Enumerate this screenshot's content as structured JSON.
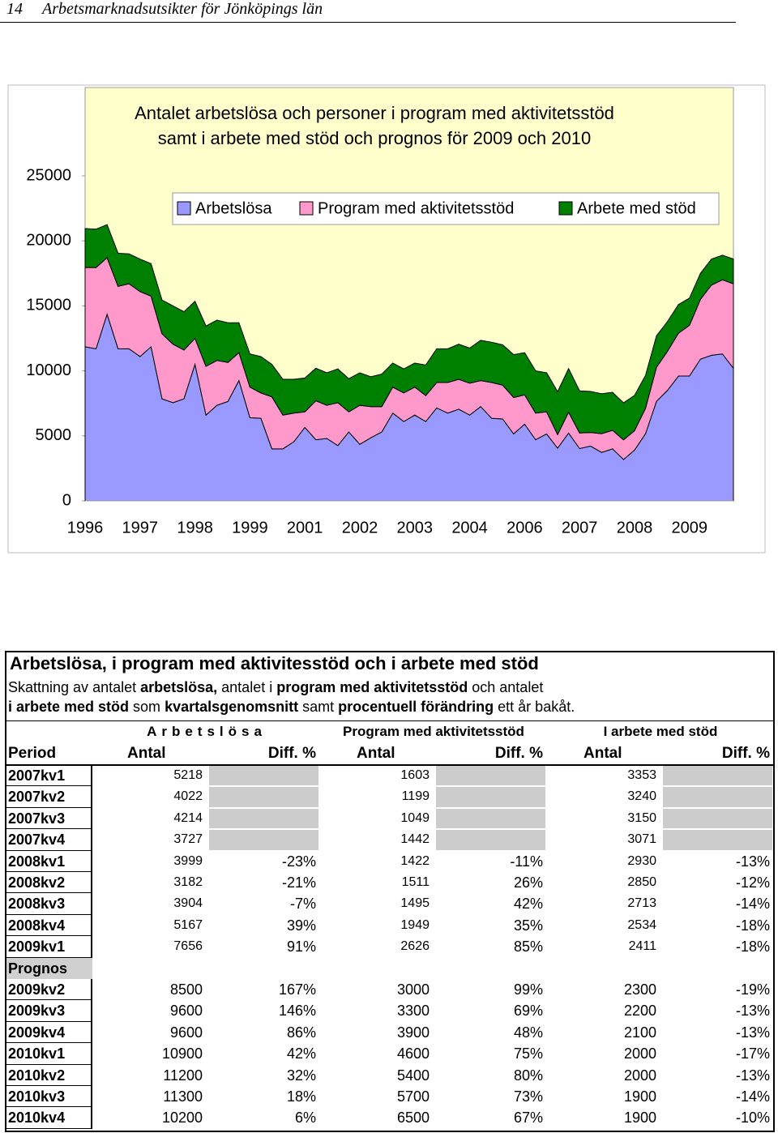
{
  "header": {
    "page_number": "14",
    "title": "Arbetsmarknadsutsikter för Jönköpings län"
  },
  "chart_data": {
    "type": "stacked_area",
    "title": [
      "Antalet arbetslösa och personer i program med aktivitetsstöd",
      "samt i arbete med stöd och prognos för 2009 och 2010"
    ],
    "categories": [
      "1996",
      null,
      null,
      null,
      null,
      "1997",
      null,
      null,
      null,
      null,
      "1998",
      null,
      null,
      null,
      null,
      "1999",
      null,
      null,
      null,
      null,
      "2001",
      null,
      null,
      null,
      null,
      "2002",
      null,
      null,
      null,
      null,
      "2003",
      null,
      null,
      null,
      null,
      "2004",
      null,
      null,
      null,
      null,
      "2006",
      null,
      null,
      null,
      null,
      "2007",
      null,
      null,
      null,
      null,
      "2008",
      null,
      null,
      null,
      null,
      "2009",
      null,
      null,
      null,
      null
    ],
    "ylim": [
      0,
      25000
    ],
    "yticks": [
      0,
      5000,
      10000,
      15000,
      20000,
      25000
    ],
    "background": "#ffffcc",
    "series": [
      {
        "name": "Arbetslösa",
        "color": "#9999ff",
        "values": [
          11850,
          11700,
          14350,
          11700,
          11700,
          11100,
          11850,
          7850,
          7550,
          7850,
          10500,
          6600,
          7350,
          7650,
          9250,
          6400,
          6350,
          4000,
          4000,
          4550,
          5650,
          4700,
          4800,
          4250,
          5300,
          4350,
          4850,
          5300,
          6750,
          6100,
          6600,
          6100,
          7150,
          6750,
          7050,
          6600,
          7250,
          6350,
          6300,
          5150,
          5900,
          4700,
          5150,
          4050,
          5218,
          4022,
          4214,
          3727,
          3999,
          3182,
          3904,
          5167,
          7656,
          8500,
          9600,
          9600,
          10900,
          11200,
          11300,
          10200
        ]
      },
      {
        "name": "Program med aktivitetsstöd",
        "color": "#ff99cc",
        "values": [
          6100,
          6250,
          4350,
          4800,
          5000,
          5000,
          3900,
          5000,
          4500,
          3750,
          2000,
          3750,
          3450,
          3000,
          2150,
          2350,
          1950,
          4000,
          2600,
          2200,
          1200,
          3000,
          2550,
          3300,
          1550,
          3000,
          2400,
          1950,
          2000,
          2200,
          2150,
          2000,
          1950,
          2350,
          2300,
          2450,
          2000,
          2750,
          2600,
          2800,
          2250,
          2050,
          1700,
          1050,
          1603,
          1199,
          1049,
          1442,
          1422,
          1511,
          1495,
          1949,
          2626,
          3000,
          3300,
          3900,
          4600,
          5400,
          5700,
          6500
        ]
      },
      {
        "name": "Arbete med stöd",
        "color": "#008000",
        "values": [
          3000,
          2950,
          2550,
          2550,
          2300,
          2500,
          2500,
          2600,
          2950,
          2950,
          2850,
          3100,
          3100,
          3050,
          2300,
          2550,
          2800,
          2500,
          2750,
          2600,
          2600,
          2500,
          2500,
          2600,
          2550,
          2500,
          2300,
          2500,
          1850,
          1850,
          1850,
          2350,
          2600,
          2600,
          2700,
          2700,
          3100,
          3100,
          3100,
          3300,
          3250,
          3250,
          3000,
          3300,
          3353,
          3240,
          3150,
          3071,
          2930,
          2850,
          2713,
          2534,
          2411,
          2300,
          2200,
          2100,
          2000,
          2000,
          1900,
          1900
        ]
      }
    ]
  },
  "table": {
    "title": "Arbetslösa, i program med aktivitesstöd och i arbete med stöd",
    "description": [
      [
        {
          "text": "Skattning av antalet ",
          "bold": false
        },
        {
          "text": "arbetslösa,",
          "bold": true
        },
        {
          "text": " antalet i ",
          "bold": false
        },
        {
          "text": "program med aktivitetsstöd",
          "bold": true
        },
        {
          "text": " och antalet",
          "bold": false
        }
      ],
      [
        {
          "text": "i arbete med stöd",
          "bold": true
        },
        {
          "text": " som ",
          "bold": false
        },
        {
          "text": "kvartalsgenomsnitt",
          "bold": true
        },
        {
          "text": " samt ",
          "bold": false
        },
        {
          "text": "procentuell förändring",
          "bold": true
        },
        {
          "text": " ett år bakåt.",
          "bold": false
        }
      ]
    ],
    "group_headers": [
      "Arbetslösa",
      "Program med aktivitetsstöd",
      "I arbete med stöd"
    ],
    "columns": [
      "Period",
      "Antal",
      "Diff. %",
      "Antal",
      "Diff. %",
      "Antal",
      "Diff. %"
    ],
    "rows": [
      [
        "2007kv1",
        5218,
        null,
        1603,
        null,
        3353,
        null
      ],
      [
        "2007kv2",
        4022,
        null,
        1199,
        null,
        3240,
        null
      ],
      [
        "2007kv3",
        4214,
        null,
        1049,
        null,
        3150,
        null
      ],
      [
        "2007kv4",
        3727,
        null,
        1442,
        null,
        3071,
        null
      ],
      [
        "2008kv1",
        3999,
        "-23%",
        1422,
        "-11%",
        2930,
        "-13%"
      ],
      [
        "2008kv2",
        3182,
        "-21%",
        1511,
        "26%",
        2850,
        "-12%"
      ],
      [
        "2008kv3",
        3904,
        "-7%",
        1495,
        "42%",
        2713,
        "-14%"
      ],
      [
        "2008kv4",
        5167,
        "39%",
        1949,
        "35%",
        2534,
        "-18%"
      ],
      [
        "2009kv1",
        7656,
        "91%",
        2626,
        "85%",
        2411,
        "-18%"
      ],
      [
        "Prognos"
      ],
      [
        "2009kv2",
        8500,
        "167%",
        3000,
        "99%",
        2300,
        "-19%"
      ],
      [
        "2009kv3",
        9600,
        "146%",
        3300,
        "69%",
        2200,
        "-13%"
      ],
      [
        "2009kv4",
        9600,
        "86%",
        3900,
        "48%",
        2100,
        "-13%"
      ],
      [
        "2010kv1",
        10900,
        "42%",
        4600,
        "75%",
        2000,
        "-17%"
      ],
      [
        "2010kv2",
        11200,
        "32%",
        5400,
        "80%",
        2000,
        "-13%"
      ],
      [
        "2010kv3",
        11300,
        "18%",
        5700,
        "73%",
        1900,
        "-14%"
      ],
      [
        "2010kv4",
        10200,
        "6%",
        6500,
        "67%",
        1900,
        "-10%"
      ]
    ]
  }
}
